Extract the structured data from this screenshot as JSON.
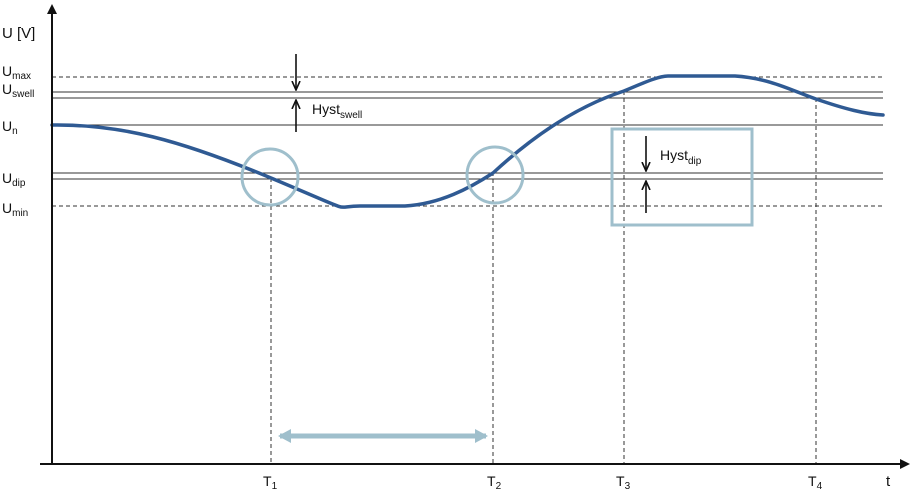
{
  "axes": {
    "y_label": "U [V]",
    "x_label": "t"
  },
  "levels": {
    "u_max": {
      "main": "U",
      "sub": "max"
    },
    "u_swell": {
      "main": "U",
      "sub": "swell"
    },
    "u_n": {
      "main": "U",
      "sub": "n"
    },
    "u_dip": {
      "main": "U",
      "sub": "dip"
    },
    "u_min": {
      "main": "U",
      "sub": "min"
    }
  },
  "hysteresis": {
    "swell": {
      "main": "Hyst",
      "sub": "swell"
    },
    "dip": {
      "main": "Hyst",
      "sub": "dip"
    }
  },
  "time_markers": {
    "t1": {
      "main": "T",
      "sub": "1"
    },
    "t2": {
      "main": "T",
      "sub": "2"
    },
    "t3": {
      "main": "T",
      "sub": "3"
    },
    "t4": {
      "main": "T",
      "sub": "4"
    }
  },
  "colors": {
    "curve": "#2f5a93",
    "highlight": "#9fbfcc",
    "axis": "#111111",
    "guide": "#333333"
  }
}
